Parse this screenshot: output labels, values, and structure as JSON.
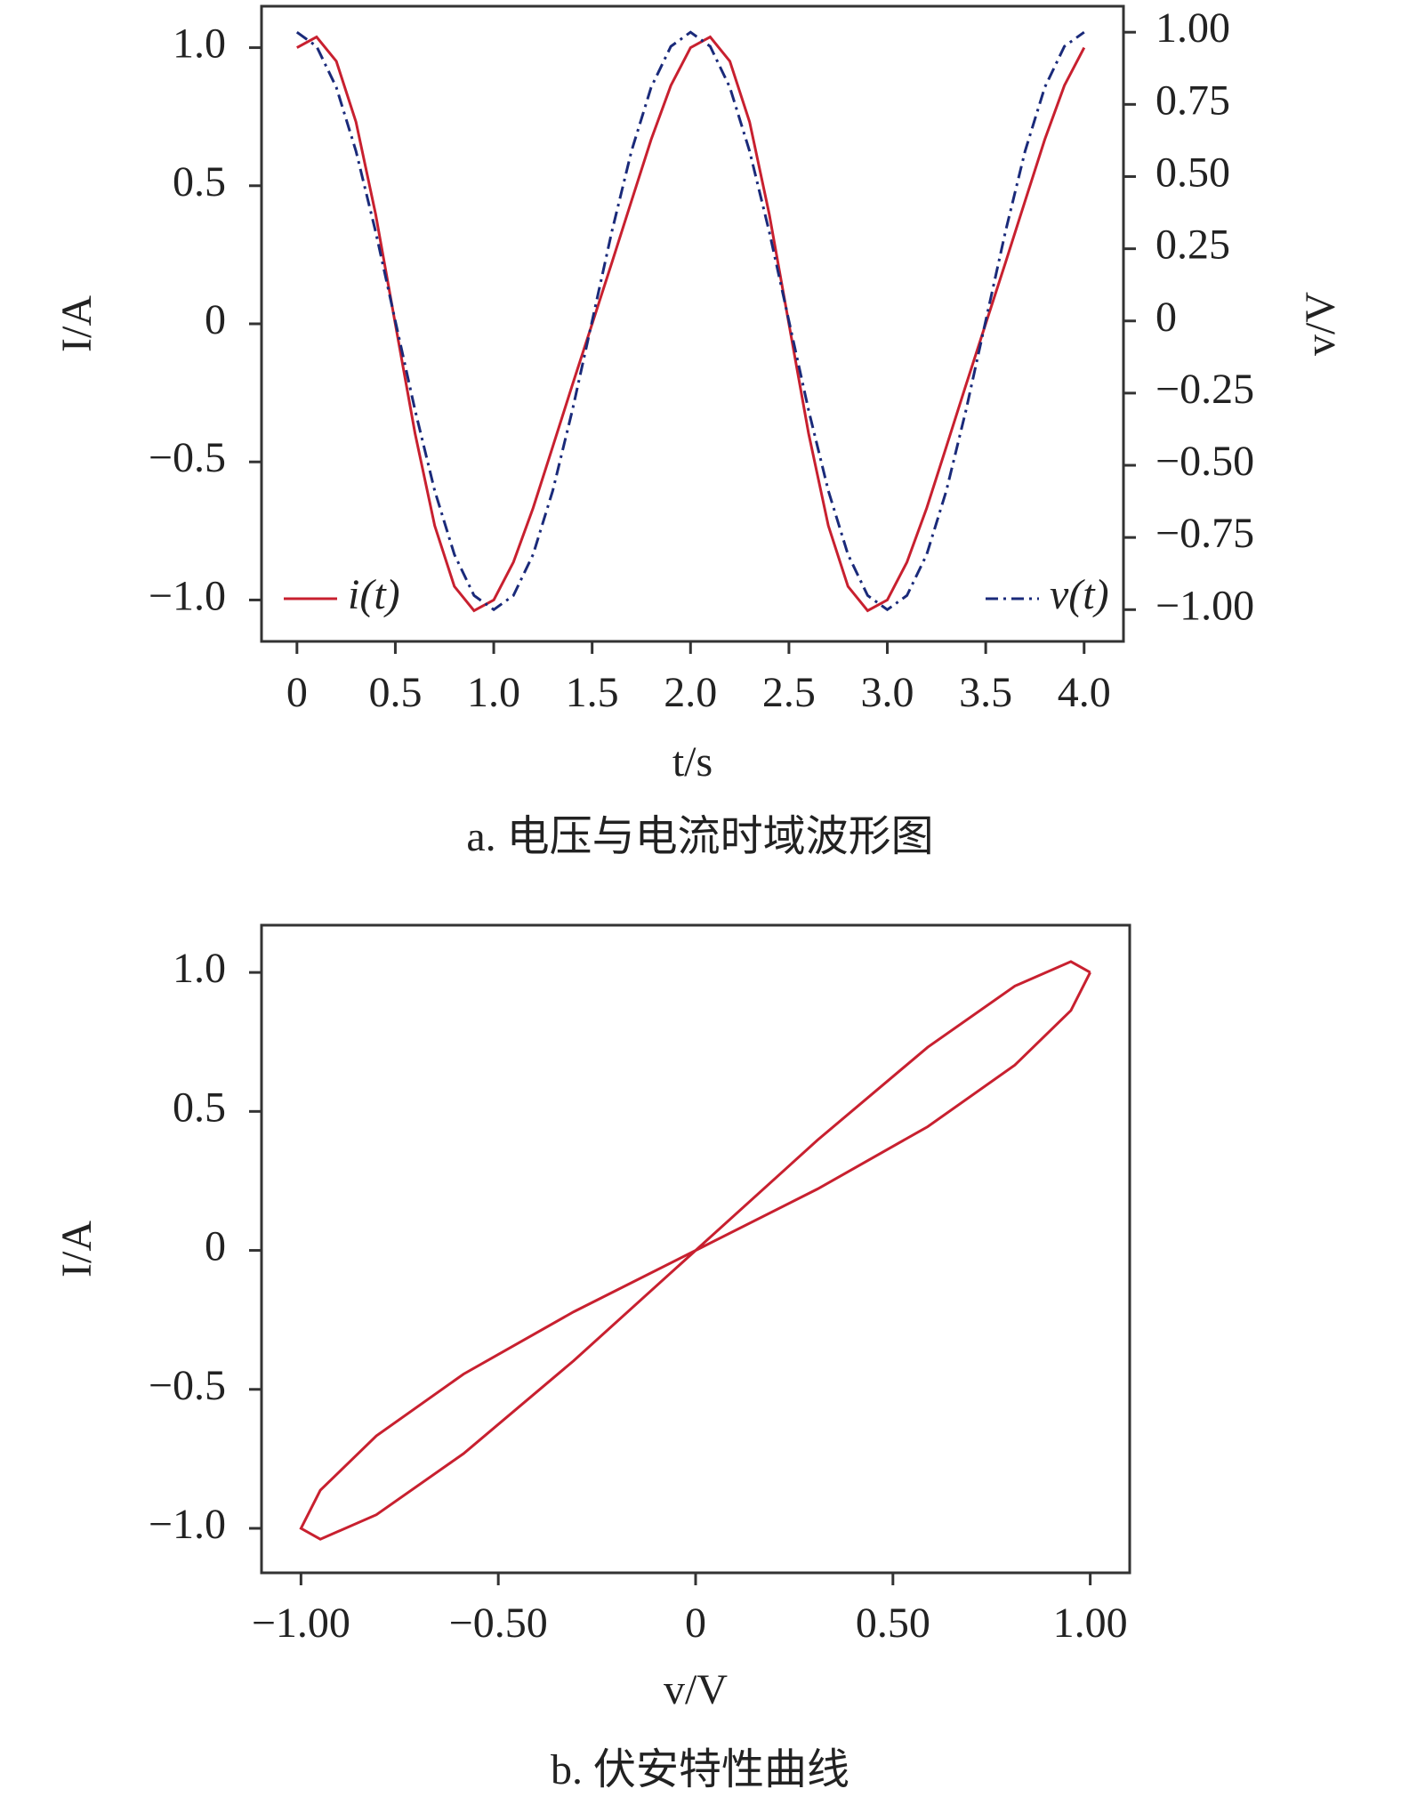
{
  "chart_data": [
    {
      "type": "line",
      "caption": "a. 电压与电流时域波形图",
      "xlabel": "t/s",
      "ylabel": "I/A",
      "y2label": "v/V",
      "x": [
        0,
        0.1,
        0.2,
        0.3,
        0.4,
        0.5,
        0.6,
        0.7,
        0.8,
        0.9,
        1.0,
        1.1,
        1.2,
        1.3,
        1.4,
        1.5,
        1.6,
        1.7,
        1.8,
        1.9,
        2.0,
        2.1,
        2.2,
        2.3,
        2.4,
        2.5,
        2.6,
        2.7,
        2.8,
        2.9,
        3.0,
        3.1,
        3.2,
        3.3,
        3.4,
        3.5,
        3.6,
        3.7,
        3.8,
        3.9,
        4.0
      ],
      "series": [
        {
          "name": "i(t)",
          "color": "#c8202f",
          "dash": "solid",
          "values": [
            1.0,
            1.039,
            0.951,
            0.731,
            0.397,
            0,
            -0.397,
            -0.731,
            -0.951,
            -1.039,
            -1.0,
            -0.863,
            -0.667,
            -0.445,
            -0.221,
            0,
            0.221,
            0.445,
            0.667,
            0.863,
            1.0,
            1.039,
            0.951,
            0.731,
            0.397,
            0,
            -0.397,
            -0.731,
            -0.951,
            -1.039,
            -1.0,
            -0.863,
            -0.667,
            -0.445,
            -0.221,
            0,
            0.221,
            0.445,
            0.667,
            0.863,
            1.0
          ]
        },
        {
          "name": "v(t)",
          "color": "#1a2a7a",
          "dash": "dashdot",
          "axis": "y2",
          "values": [
            1.0,
            0.951,
            0.809,
            0.588,
            0.309,
            0,
            -0.309,
            -0.588,
            -0.809,
            -0.951,
            -1.0,
            -0.951,
            -0.809,
            -0.588,
            -0.309,
            0,
            0.309,
            0.588,
            0.809,
            0.951,
            1.0,
            0.951,
            0.809,
            0.588,
            0.309,
            0,
            -0.309,
            -0.588,
            -0.809,
            -0.951,
            -1.0,
            -0.951,
            -0.809,
            -0.588,
            -0.309,
            0,
            0.309,
            0.588,
            0.809,
            0.951,
            1.0
          ]
        }
      ],
      "xlim": [
        -0.18,
        4.2
      ],
      "xticks": [
        0,
        0.5,
        {
          "value": 1,
          "label": "1.0"
        },
        1.5,
        {
          "value": 2,
          "label": "2.0"
        },
        2.5,
        {
          "value": 3,
          "label": "3.0"
        },
        3.5,
        {
          "value": 4,
          "label": "4.0"
        }
      ],
      "ylim": [
        -1.15,
        1.15
      ],
      "yticks": [
        {
          "value": -1,
          "label": "−1.0"
        },
        {
          "value": -0.5,
          "label": "−0.5"
        },
        0,
        0.5,
        {
          "value": 1,
          "label": "1.0"
        }
      ],
      "y2lim": [
        -1.11,
        1.09
      ],
      "y2ticks": [
        {
          "value": -1,
          "label": "−1.00"
        },
        {
          "value": -0.75,
          "label": "−0.75"
        },
        {
          "value": -0.5,
          "label": "−0.50"
        },
        {
          "value": -0.25,
          "label": "−0.25"
        },
        0,
        0.25,
        {
          "value": 0.5,
          "label": "0.50"
        },
        0.75,
        {
          "value": 1,
          "label": "1.00"
        }
      ],
      "legend": true
    },
    {
      "type": "line",
      "caption": "b. 伏安特性曲线",
      "xlabel": "v/V",
      "ylabel": "I/A",
      "x": [
        1.0,
        0.951,
        0.809,
        0.588,
        0.309,
        0,
        -0.309,
        -0.588,
        -0.809,
        -0.951,
        -1.0,
        -0.951,
        -0.809,
        -0.588,
        -0.309,
        0,
        0.309,
        0.588,
        0.809,
        0.951,
        1.0
      ],
      "series": [
        {
          "color": "#c8202f",
          "dash": "solid",
          "values": [
            1.0,
            1.039,
            0.951,
            0.731,
            0.397,
            0,
            -0.397,
            -0.731,
            -0.951,
            -1.039,
            -1.0,
            -0.863,
            -0.667,
            -0.445,
            -0.221,
            0,
            0.221,
            0.445,
            0.667,
            0.863,
            1.0
          ]
        }
      ],
      "xlim": [
        -1.1,
        1.1
      ],
      "xticks": [
        {
          "value": -1,
          "label": "−1.00"
        },
        {
          "value": -0.5,
          "label": "−0.50"
        },
        0,
        {
          "value": 0.5,
          "label": "0.50"
        },
        {
          "value": 1,
          "label": "1.00"
        }
      ],
      "ylim": [
        -1.16,
        1.17
      ],
      "yticks": [
        {
          "value": -1,
          "label": "−1.0"
        },
        {
          "value": -0.5,
          "label": "−0.5"
        },
        0,
        0.5,
        {
          "value": 1,
          "label": "1.0"
        }
      ],
      "legend": false
    }
  ]
}
